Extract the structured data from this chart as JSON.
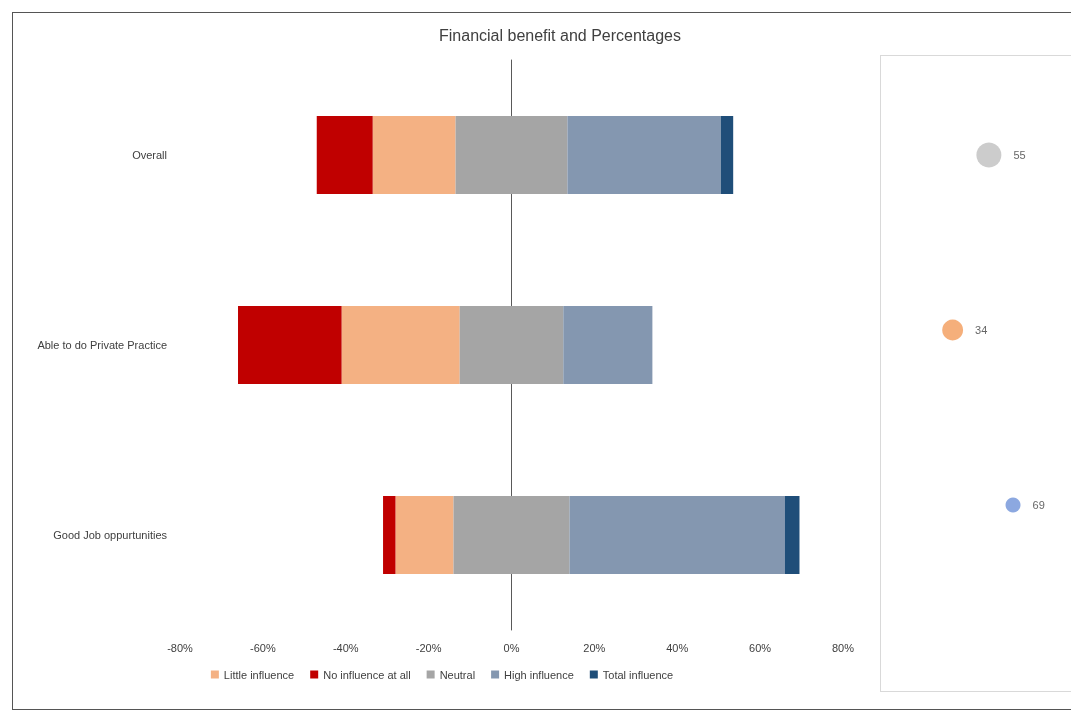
{
  "chart_data": [
    {
      "type": "bar",
      "orientation": "horizontal",
      "title": "Financial benefit and Percentages",
      "categories": [
        "Overall",
        "Able to do Private Practice",
        "Good Job oppurtunities"
      ],
      "series": [
        {
          "name": "Little influence",
          "color": "#f4b183",
          "base": [
            -33.5,
            -41,
            -28
          ],
          "values": [
            20,
            28.5,
            14
          ]
        },
        {
          "name": "No influence at all",
          "color": "#c00000",
          "base": [
            -47,
            -66,
            -31
          ],
          "values": [
            13.5,
            25,
            3
          ]
        },
        {
          "name": "Neutral",
          "color": "#a5a5a5",
          "base": [
            -13.5,
            -12.5,
            -14
          ],
          "values": [
            27,
            25,
            28
          ]
        },
        {
          "name": "High influence",
          "color": "#8497b0",
          "base": [
            13.5,
            12.5,
            14
          ],
          "values": [
            37,
            21.5,
            52
          ]
        },
        {
          "name": "Total influence",
          "color": "#1f4e79",
          "base": [
            50.5,
            null,
            66
          ],
          "values": [
            3,
            null,
            3.5
          ]
        }
      ],
      "xlim": [
        -80,
        80
      ],
      "xticks": [
        {
          "value": -80,
          "label": "-80%"
        },
        {
          "value": -60,
          "label": "-60%"
        },
        {
          "value": -40,
          "label": "-40%"
        },
        {
          "value": -20,
          "label": "-20%"
        },
        {
          "value": 0,
          "label": "0%"
        },
        {
          "value": 20,
          "label": "20%"
        },
        {
          "value": 40,
          "label": "40%"
        },
        {
          "value": 60,
          "label": "60%"
        },
        {
          "value": 80,
          "label": "80%"
        }
      ],
      "legend": "bottom"
    },
    {
      "type": "bubble",
      "orientation": "horizontal",
      "categories": [
        null,
        null,
        null
      ],
      "values": [
        55,
        34,
        69
      ],
      "sizes": [
        1,
        0.7,
        0.36
      ],
      "colors": [
        "#bfbfbf",
        "#f39b5a",
        "#6f92d8"
      ],
      "data_labels": true,
      "tick_labels": false
    }
  ]
}
